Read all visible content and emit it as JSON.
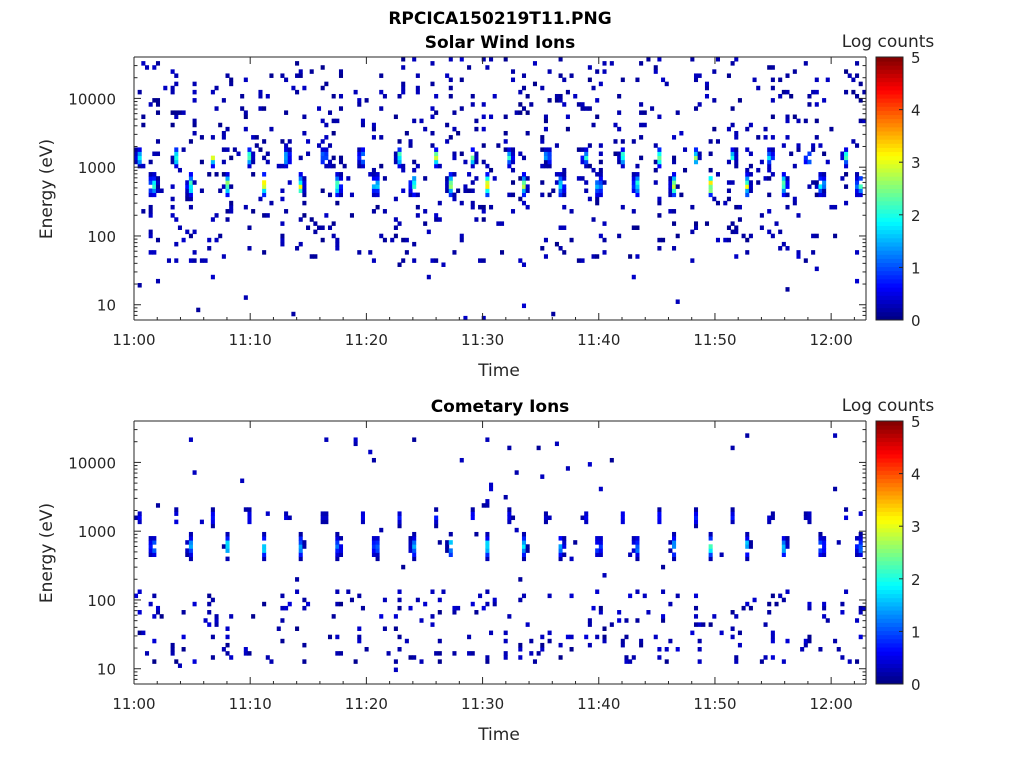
{
  "figure": {
    "title": "RPCICA150219T11.PNG"
  },
  "chart_data": [
    {
      "type": "heatmap",
      "title": "Solar Wind Ions",
      "xlabel": "Time",
      "ylabel": "Energy (eV)",
      "x_ticks": [
        "11:00",
        "11:10",
        "11:20",
        "11:30",
        "11:40",
        "11:50",
        "12:00"
      ],
      "x_range_minutes": [
        0,
        63
      ],
      "y_ticks": [
        {
          "value": 10,
          "label": "10"
        },
        {
          "value": 100,
          "label": "100"
        },
        {
          "value": 1000,
          "label": "1000"
        },
        {
          "value": 10000,
          "label": "10000"
        }
      ],
      "ylim": [
        6,
        40000
      ],
      "y_scale": "log",
      "colorbar": {
        "label": "Log counts",
        "range": [
          0,
          5
        ],
        "ticks": [
          "0",
          "1",
          "2",
          "3",
          "4",
          "5"
        ],
        "colormap": "jet"
      },
      "sweep_period_minutes": 3.2,
      "band_upper": {
        "center_eV": 1400,
        "peak_log_counts": 2.6
      },
      "band_lower": {
        "center_eV": 550,
        "peak_log_counts": 3.0
      },
      "background": {
        "lo_eV": 40,
        "hi_eV": 40000,
        "peak_log_counts": 0.3
      }
    },
    {
      "type": "heatmap",
      "title": "Cometary Ions",
      "xlabel": "Time",
      "ylabel": "Energy (eV)",
      "x_ticks": [
        "11:00",
        "11:10",
        "11:20",
        "11:30",
        "11:40",
        "11:50",
        "12:00"
      ],
      "x_range_minutes": [
        0,
        63
      ],
      "y_ticks": [
        {
          "value": 10,
          "label": "10"
        },
        {
          "value": 100,
          "label": "100"
        },
        {
          "value": 1000,
          "label": "1000"
        },
        {
          "value": 10000,
          "label": "10000"
        }
      ],
      "ylim": [
        6,
        40000
      ],
      "y_scale": "log",
      "colorbar": {
        "label": "Log counts",
        "range": [
          0,
          5
        ],
        "ticks": [
          "0",
          "1",
          "2",
          "3",
          "4",
          "5"
        ],
        "colormap": "jet"
      },
      "sweep_period_minutes": 3.2,
      "band_upper": {
        "center_eV": 1600,
        "peak_log_counts": 0.7
      },
      "band_lower": {
        "center_eV": 600,
        "peak_log_counts": 1.8
      },
      "background": {
        "lo_eV": 12,
        "hi_eV": 150,
        "peak_log_counts": 0.4
      }
    }
  ]
}
